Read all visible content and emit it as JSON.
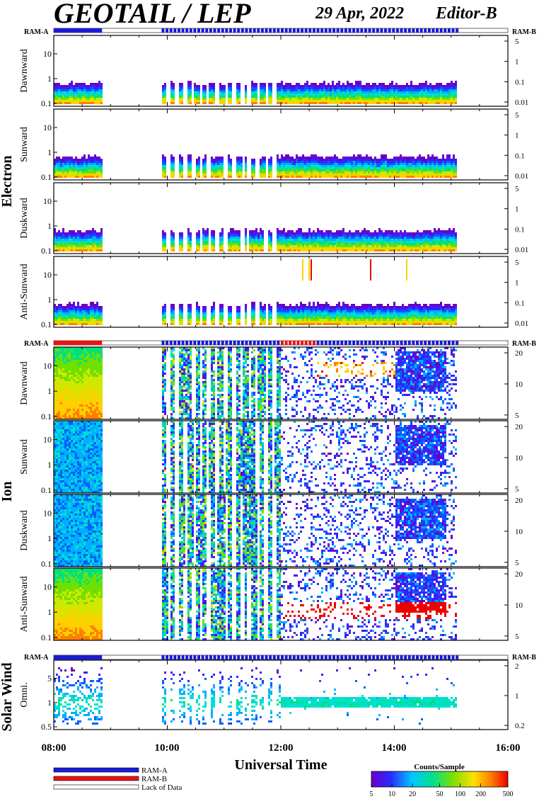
{
  "header": {
    "title": "GEOTAIL / LEP",
    "date": "29 Apr, 2022",
    "editor": "Editor-B"
  },
  "groups": [
    {
      "name": "Electron"
    },
    {
      "name": "Ion"
    },
    {
      "name": "Solar Wind"
    }
  ],
  "ram_labels": {
    "left": "RAM-A",
    "right": "RAM-B"
  },
  "legend": {
    "ram_a": "RAM-A",
    "ram_b": "RAM-B",
    "lack": "Lack of Data",
    "colorbar_title": "Counts/Sample",
    "colorbar_ticks": [
      "5",
      "10",
      "20",
      "50",
      "100",
      "200",
      "500"
    ]
  },
  "colors": {
    "ram_a": "#1a1ad8",
    "ram_b": "#ee1111",
    "lack": "#ffffff",
    "frame": "#000000"
  },
  "chart_data": {
    "type": "heatmap",
    "xlabel": "Universal Time",
    "x_ticks": [
      "08:00",
      "10:00",
      "12:00",
      "14:00",
      "16:00"
    ],
    "x_range_hours": [
      8,
      16
    ],
    "colorbar_range": [
      5,
      500
    ],
    "colorbar_scale": "log",
    "data_gaps_hours": [
      [
        8.85,
        9.9
      ],
      [
        15.1,
        16
      ]
    ],
    "panels": [
      {
        "group": "Electron",
        "label": "Dawnward",
        "left_ticks": [
          "10",
          "1",
          "0.1"
        ],
        "right_ticks": [
          "5",
          "1",
          "0.1",
          "0.01"
        ]
      },
      {
        "group": "Electron",
        "label": "Sunward",
        "left_ticks": [
          "10",
          "1",
          "0.1"
        ],
        "right_ticks": [
          "5",
          "1",
          "0.1",
          "0.01"
        ]
      },
      {
        "group": "Electron",
        "label": "Duskward",
        "left_ticks": [
          "10",
          "1",
          "0.1"
        ],
        "right_ticks": [
          "5",
          "1",
          "0.1",
          "0.01"
        ]
      },
      {
        "group": "Electron",
        "label": "Anti-Sunward",
        "left_ticks": [
          "10",
          "1",
          "0.1"
        ],
        "right_ticks": [
          "5",
          "1",
          "0.1",
          "0.01"
        ]
      },
      {
        "group": "Ion",
        "label": "Dawnward",
        "left_ticks": [
          "10",
          "1",
          "0.1"
        ],
        "right_ticks": [
          "20",
          "10",
          "5"
        ]
      },
      {
        "group": "Ion",
        "label": "Sunward",
        "left_ticks": [
          "10",
          "1",
          "0.1"
        ],
        "right_ticks": [
          "20",
          "10",
          "5"
        ]
      },
      {
        "group": "Ion",
        "label": "Duskward",
        "left_ticks": [
          "10",
          "1",
          "0.1"
        ],
        "right_ticks": [
          "20",
          "10",
          "5"
        ]
      },
      {
        "group": "Ion",
        "label": "Anti-Sunward",
        "left_ticks": [
          "10",
          "1",
          "0.1"
        ],
        "right_ticks": [
          "20",
          "10",
          "5"
        ]
      },
      {
        "group": "Solar Wind",
        "label": "Omni.",
        "left_ticks": [
          "5",
          "1",
          "0.5"
        ],
        "right_ticks": [
          "2",
          "1",
          "0.2"
        ]
      }
    ]
  }
}
